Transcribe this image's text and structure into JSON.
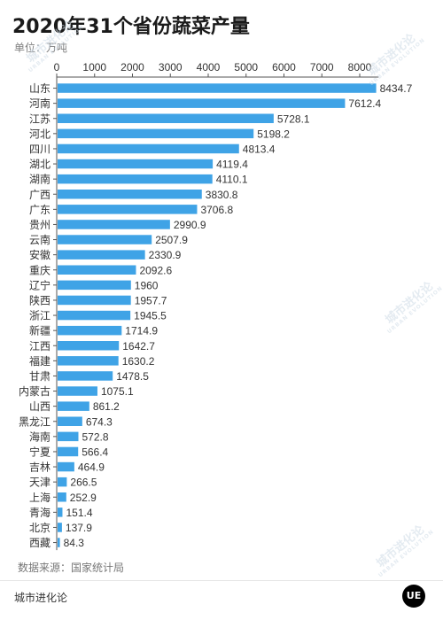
{
  "title": "2020年31个省份蔬菜产量",
  "unit": "单位：万吨",
  "source": "数据来源：国家统计局",
  "brand": "城市进化论",
  "logo_text": "UE",
  "watermark": {
    "main": "城市进化论",
    "sub": "URBAN EVOLUTION"
  },
  "colors": {
    "bar": "#3fa3e6",
    "axis": "#555555",
    "label": "#333333",
    "background": "#ffffff"
  },
  "chart_data": {
    "type": "bar",
    "orientation": "horizontal",
    "title": "2020年31个省份蔬菜产量",
    "ylabel": "单位：万吨",
    "xlim": [
      0,
      8500
    ],
    "ticks": [
      0,
      1000,
      2000,
      3000,
      4000,
      5000,
      6000,
      7000,
      8000
    ],
    "axis_position": "top",
    "grid": false,
    "categories": [
      "山东",
      "河南",
      "江苏",
      "河北",
      "四川",
      "湖北",
      "湖南",
      "广西",
      "广东",
      "贵州",
      "云南",
      "安徽",
      "重庆",
      "辽宁",
      "陕西",
      "浙江",
      "新疆",
      "江西",
      "福建",
      "甘肃",
      "内蒙古",
      "山西",
      "黑龙江",
      "海南",
      "宁夏",
      "吉林",
      "天津",
      "上海",
      "青海",
      "北京",
      "西藏"
    ],
    "values": [
      8434.7,
      7612.4,
      5728.1,
      5198.2,
      4813.4,
      4119.4,
      4110.1,
      3830.8,
      3706.8,
      2990.9,
      2507.9,
      2330.9,
      2092.6,
      1960,
      1957.7,
      1945.5,
      1714.9,
      1642.7,
      1630.2,
      1478.5,
      1075.1,
      861.2,
      674.3,
      572.8,
      566.4,
      464.9,
      266.5,
      252.9,
      151.4,
      137.9,
      84.3
    ]
  }
}
